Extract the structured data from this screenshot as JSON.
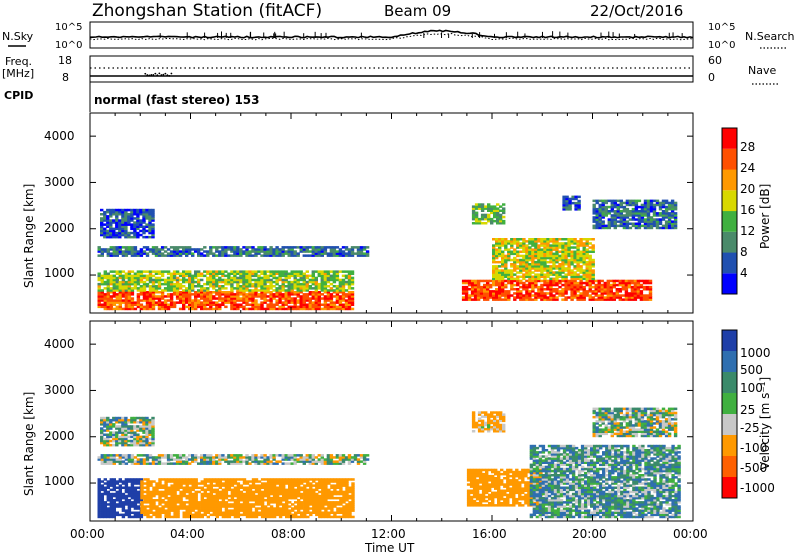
{
  "header": {
    "title": "Zhongshan Station (fitACF)",
    "beam": "Beam 09",
    "date": "22/Oct/2016"
  },
  "noise_panel": {
    "left_label": "N.Sky",
    "right_label": "N.Search",
    "left_ticks": [
      "10^5",
      "10^0"
    ],
    "right_ticks": [
      "10^5",
      "10^0"
    ]
  },
  "freq_panel": {
    "left_label_1": "Freq.",
    "left_label_2": "[MHz]",
    "right_label": "Nave",
    "left_ticks": [
      "18",
      "8"
    ],
    "right_ticks": [
      "60",
      "0"
    ]
  },
  "cpid": {
    "label": "CPID",
    "mode": "normal (fast stereo) 153"
  },
  "power_panel": {
    "ylabel": "Slant Range [km]",
    "yticks": [
      "4000",
      "3000",
      "2000",
      "1000"
    ],
    "colorbar_label": "Power [dB]",
    "colorbar_ticks": [
      "28",
      "24",
      "20",
      "16",
      "12",
      "8",
      "4"
    ],
    "colors": [
      "#0000ff",
      "#2050b0",
      "#4a8a6a",
      "#40b040",
      "#d8d800",
      "#ff9900",
      "#ff5000",
      "#ff0000"
    ]
  },
  "velocity_panel": {
    "ylabel": "Slant Range [km]",
    "yticks": [
      "4000",
      "3000",
      "2000",
      "1000"
    ],
    "colorbar_label": "Velocity [m s⁻¹]",
    "colorbar_ticks": [
      "1000",
      "500",
      "100",
      "25",
      "-25",
      "-100",
      "-500",
      "-1000"
    ],
    "colors": [
      "#1f3fa8",
      "#2f6fb0",
      "#3a8a6a",
      "#40b040",
      "#c8c8c8",
      "#ff9900",
      "#ff6000",
      "#ff0000"
    ]
  },
  "x_axis": {
    "ticks": [
      "00:00",
      "04:00",
      "08:00",
      "12:00",
      "16:00",
      "20:00",
      "00:00"
    ],
    "label": "Time UT"
  },
  "chart_data": [
    {
      "type": "heatmap",
      "title": "Power [dB]",
      "xlabel": "Time UT",
      "ylabel": "Slant Range [km]",
      "xlim": [
        0,
        24
      ],
      "ylim": [
        180,
        4500
      ],
      "colorbar_range": [
        0,
        32
      ],
      "regions": [
        {
          "t0": 0.3,
          "t1": 10.4,
          "r0": 250,
          "r1": 650,
          "value": 26
        },
        {
          "t0": 0.3,
          "t1": 10.4,
          "r0": 650,
          "r1": 1100,
          "value": 16
        },
        {
          "t0": 0.3,
          "t1": 11.0,
          "r0": 1400,
          "r1": 1600,
          "value": 8
        },
        {
          "t0": 0.4,
          "t1": 2.5,
          "r0": 1800,
          "r1": 2400,
          "value": 6
        },
        {
          "t0": 14.8,
          "t1": 22.3,
          "r0": 450,
          "r1": 900,
          "value": 27
        },
        {
          "t0": 16.0,
          "t1": 20.0,
          "r0": 900,
          "r1": 1800,
          "value": 18
        },
        {
          "t0": 15.2,
          "t1": 16.5,
          "r0": 2100,
          "r1": 2550,
          "value": 14
        },
        {
          "t0": 20.0,
          "t1": 23.3,
          "r0": 2000,
          "r1": 2600,
          "value": 8
        },
        {
          "t0": 18.8,
          "t1": 19.5,
          "r0": 2400,
          "r1": 2700,
          "value": 6
        }
      ]
    },
    {
      "type": "heatmap",
      "title": "Velocity [m s-1]",
      "xlabel": "Time UT",
      "ylabel": "Slant Range [km]",
      "xlim": [
        0,
        24
      ],
      "ylim": [
        180,
        4500
      ],
      "colorbar_range": [
        -1000,
        1000
      ],
      "regions": [
        {
          "t0": 0.3,
          "t1": 2.0,
          "r0": 250,
          "r1": 1100,
          "value": 800
        },
        {
          "t0": 2.0,
          "t1": 10.4,
          "r0": 250,
          "r1": 1100,
          "value": -300
        },
        {
          "t0": 0.3,
          "t1": 11.0,
          "r0": 1400,
          "r1": 1600,
          "value": 0
        },
        {
          "t0": 0.4,
          "t1": 2.5,
          "r0": 1800,
          "r1": 2400,
          "value": 0
        },
        {
          "t0": 15.0,
          "t1": 18.0,
          "r0": 500,
          "r1": 1300,
          "value": -250
        },
        {
          "t0": 17.5,
          "t1": 23.5,
          "r0": 250,
          "r1": 1800,
          "value": 60
        },
        {
          "t0": 20.0,
          "t1": 23.3,
          "r0": 2000,
          "r1": 2600,
          "value": 0
        },
        {
          "t0": 15.2,
          "t1": 16.5,
          "r0": 2100,
          "r1": 2550,
          "value": -150
        }
      ]
    }
  ]
}
